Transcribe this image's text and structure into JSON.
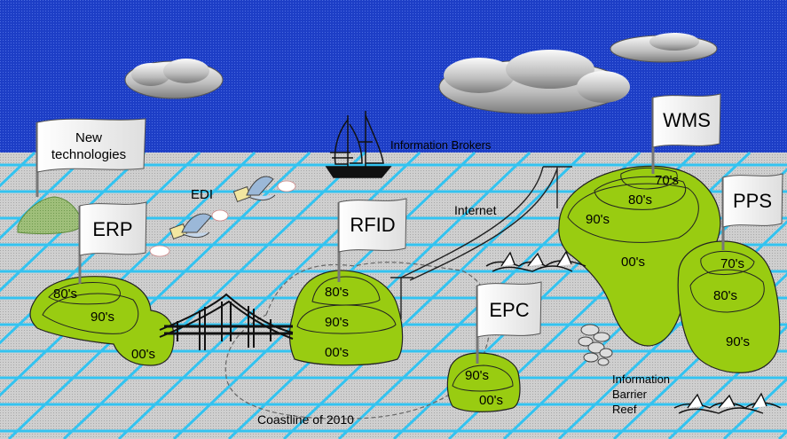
{
  "flags": {
    "new_tech": [
      "New",
      "technologies"
    ],
    "erp": "ERP",
    "rfid": "RFID",
    "epc": "EPC",
    "wms": "WMS",
    "pps": "PPS"
  },
  "labels": {
    "edi": "EDI",
    "information_brokers": "Information Brokers",
    "internet": "Internet",
    "coastline": "Coastline of 2010",
    "reef": [
      "Information",
      "Barrier",
      "Reef"
    ]
  },
  "contours": {
    "erp": [
      "80's",
      "90's",
      "00's"
    ],
    "rfid": [
      "80's",
      "90's",
      "00's"
    ],
    "epc": [
      "90's",
      "00's"
    ],
    "wms": [
      "70's",
      "80's",
      "90's",
      "00's"
    ],
    "pps": [
      "70's",
      "80's",
      "90's"
    ]
  },
  "colors": {
    "sky": "#1e3fc8",
    "sea": "#c9c9c9",
    "grid": "#33c3f0",
    "island": "#99cc11",
    "far_island": "#8fb86a"
  }
}
